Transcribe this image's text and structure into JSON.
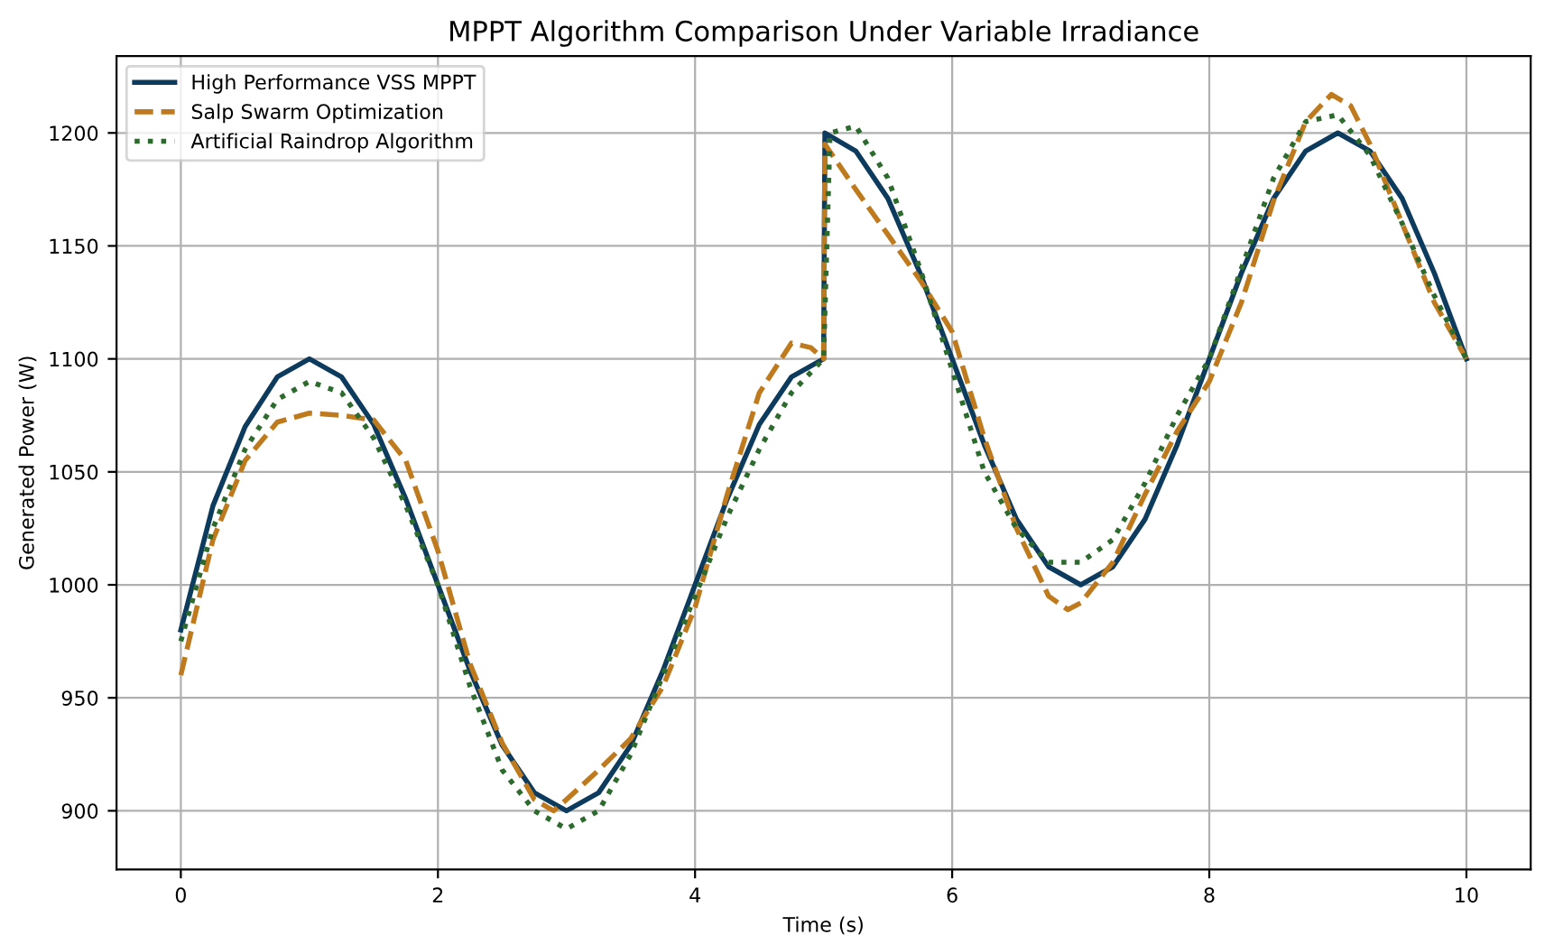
{
  "chart_data": {
    "type": "line",
    "title": "MPPT Algorithm Comparison Under Variable Irradiance",
    "xlabel": "Time (s)",
    "ylabel": "Generated Power (W)",
    "xlim": [
      -0.5,
      10.5
    ],
    "xticks": [
      0,
      2,
      4,
      6,
      8,
      10
    ],
    "ylim": [
      874,
      1234
    ],
    "yticks": [
      900,
      950,
      1000,
      1050,
      1100,
      1150,
      1200
    ],
    "grid": true,
    "legend": "top left",
    "series": [
      {
        "name": "High Performance VSS MPPT",
        "color": "#0d3b5e",
        "line_style": "solid",
        "x": [
          0,
          0.25,
          0.5,
          0.75,
          1,
          1.25,
          1.5,
          1.75,
          2,
          2.25,
          2.5,
          2.75,
          3,
          3.25,
          3.5,
          3.75,
          4,
          4.25,
          4.5,
          4.75,
          5,
          5.01,
          5.25,
          5.5,
          5.75,
          6,
          6.25,
          6.5,
          6.75,
          7,
          7.25,
          7.5,
          7.75,
          8,
          8.25,
          8.5,
          8.75,
          9,
          9.25,
          9.5,
          9.75,
          10
        ],
        "values": [
          980,
          1035,
          1070,
          1092,
          1100,
          1092,
          1071,
          1038,
          1000,
          962,
          929,
          908,
          900,
          908,
          929,
          962,
          1000,
          1038,
          1071,
          1092,
          1100,
          1200,
          1192,
          1171,
          1138,
          1100,
          1062,
          1029,
          1008,
          1000,
          1008,
          1029,
          1062,
          1100,
          1138,
          1171,
          1192,
          1200,
          1192,
          1171,
          1138,
          1100
        ]
      },
      {
        "name": "Salp Swarm Optimization",
        "color": "#c07a1e",
        "line_style": "dashed",
        "x": [
          0,
          0.25,
          0.5,
          0.75,
          1,
          1.25,
          1.5,
          1.75,
          2,
          2.25,
          2.5,
          2.75,
          2.9,
          3,
          3.25,
          3.5,
          3.75,
          4,
          4.25,
          4.5,
          4.75,
          4.9,
          5,
          5.01,
          5.25,
          5.5,
          5.75,
          6,
          6.25,
          6.5,
          6.75,
          6.9,
          7,
          7.25,
          7.5,
          7.75,
          8,
          8.25,
          8.5,
          8.75,
          8.95,
          9.1,
          9.25,
          9.5,
          9.75,
          10
        ],
        "values": [
          960,
          1020,
          1055,
          1072,
          1076,
          1075,
          1073,
          1055,
          1015,
          965,
          930,
          905,
          900,
          905,
          918,
          932,
          955,
          990,
          1040,
          1085,
          1107,
          1105,
          1100,
          1195,
          1175,
          1155,
          1135,
          1112,
          1065,
          1025,
          995,
          989,
          992,
          1010,
          1040,
          1068,
          1090,
          1125,
          1170,
          1205,
          1217,
          1212,
          1195,
          1160,
          1125,
          1100
        ]
      },
      {
        "name": "Artificial Raindrop Algorithm",
        "color": "#2d6a2d",
        "line_style": "dotted",
        "x": [
          0,
          0.25,
          0.5,
          0.75,
          1,
          1.25,
          1.5,
          1.75,
          2,
          2.25,
          2.5,
          2.75,
          3,
          3.25,
          3.5,
          3.75,
          4,
          4.25,
          4.5,
          4.75,
          5,
          5.05,
          5.25,
          5.5,
          5.75,
          6,
          6.25,
          6.5,
          6.75,
          7,
          7.25,
          7.5,
          7.75,
          8,
          8.25,
          8.5,
          8.75,
          9,
          9.25,
          9.5,
          9.75,
          10
        ],
        "values": [
          975,
          1025,
          1060,
          1082,
          1090,
          1085,
          1065,
          1035,
          1000,
          955,
          918,
          900,
          892,
          900,
          925,
          960,
          995,
          1030,
          1060,
          1085,
          1100,
          1200,
          1203,
          1180,
          1140,
          1095,
          1050,
          1025,
          1010,
          1010,
          1020,
          1045,
          1075,
          1100,
          1140,
          1180,
          1205,
          1208,
          1190,
          1160,
          1128,
          1100
        ]
      }
    ]
  }
}
